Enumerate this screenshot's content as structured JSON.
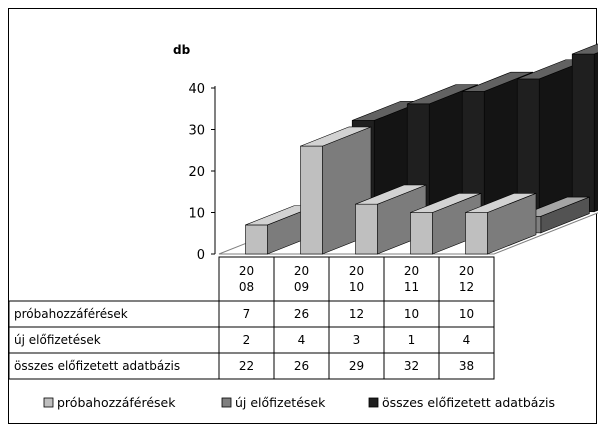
{
  "chart_data": {
    "type": "bar",
    "ylabel": "db",
    "ylim": [
      0,
      40
    ],
    "yticks": [
      "0",
      "10",
      "20",
      "30",
      "40"
    ],
    "categories": [
      [
        "20",
        "08"
      ],
      [
        "20",
        "09"
      ],
      [
        "20",
        "10"
      ],
      [
        "20",
        "11"
      ],
      [
        "20",
        "12"
      ]
    ],
    "series": [
      {
        "name": "próbahozzáférések",
        "values": [
          7,
          26,
          12,
          10,
          10
        ],
        "value_labels": [
          "7",
          "26",
          "12",
          "10",
          "10"
        ],
        "color": "#bfbfbf"
      },
      {
        "name": "új előfizetések",
        "values": [
          2,
          4,
          3,
          1,
          4
        ],
        "value_labels": [
          "2",
          "4",
          "3",
          "1",
          "4"
        ],
        "color": "#7f7f7f"
      },
      {
        "name": "összes előfizetett adatbázis",
        "values": [
          22,
          26,
          29,
          32,
          38
        ],
        "value_labels": [
          "22",
          "26",
          "29",
          "32",
          "38"
        ],
        "color": "#1f1f1f"
      }
    ],
    "legend_position": "bottom",
    "data_table": true,
    "style": "3d-column"
  }
}
